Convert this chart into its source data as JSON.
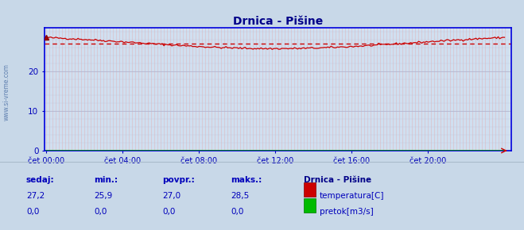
{
  "title": "Drnica - Pišine",
  "plot_bg_color": "#d0dff0",
  "outer_bg_color": "#c8d8e8",
  "grid_color_v": "#e8a0a0",
  "grid_color_h": "#b8b8d0",
  "spine_color": "#0000dd",
  "x_ticks_labels": [
    "čet 00:00",
    "čet 04:00",
    "čet 08:00",
    "čet 12:00",
    "čet 16:00",
    "čet 20:00"
  ],
  "x_tick_positions": [
    0,
    48,
    96,
    144,
    192,
    240
  ],
  "x_max": 288,
  "y_ticks": [
    0,
    10,
    20
  ],
  "ylim": [
    0,
    31
  ],
  "xlim": [
    0,
    288
  ],
  "temp_avg": 27.0,
  "temp_min": 25.9,
  "temp_max": 28.5,
  "temp_current": 27.2,
  "watermark": "www.si-vreme.com",
  "legend_title": "Drnica - Pišine",
  "legend_items": [
    {
      "label": "temperatura[C]",
      "color": "#cc0000"
    },
    {
      "label": "pretok[m3/s]",
      "color": "#00aa00"
    }
  ],
  "table_headers": [
    "sedaj:",
    "min.:",
    "povpr.:",
    "maks.:"
  ],
  "table_row1": [
    "27,2",
    "25,9",
    "27,0",
    "28,5"
  ],
  "table_row2": [
    "0,0",
    "0,0",
    "0,0",
    "0,0"
  ],
  "text_color": "#0000bb",
  "title_color": "#000088",
  "temp_line_color": "#cc0000",
  "flow_line_color": "#008800"
}
